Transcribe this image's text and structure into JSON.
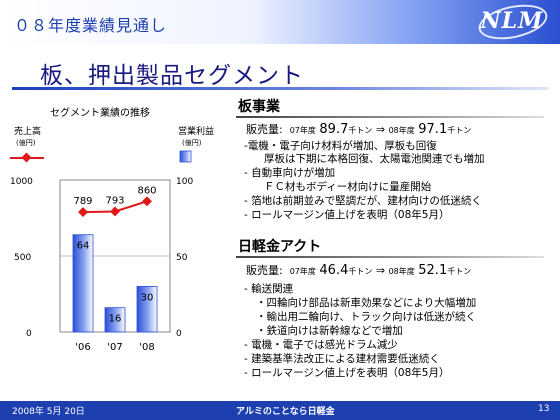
{
  "header": {
    "title": "０８年度業績見通し",
    "logo_text": "NLM"
  },
  "page_title": "板、押出製品セグメント",
  "chart_data": {
    "type": "bar",
    "title": "セグメント業績の推移",
    "categories": [
      "'06",
      "'07",
      "'08"
    ],
    "left_axis": {
      "label": "売上高",
      "unit": "(億円)",
      "ticks": [
        "1000",
        "500",
        "0"
      ],
      "ylim": [
        0,
        1000
      ]
    },
    "right_axis": {
      "label": "営業利益",
      "unit": "(億円)",
      "ticks": [
        "100",
        "50",
        "0"
      ],
      "ylim": [
        0,
        100
      ]
    },
    "series": [
      {
        "axis": "left",
        "kind": "line",
        "values": [
          789,
          793,
          860
        ],
        "color": "#e01818"
      },
      {
        "axis": "right",
        "kind": "bar",
        "values": [
          64,
          16,
          30
        ],
        "color": "#4a6ee0"
      }
    ]
  },
  "section1": {
    "title": "板事業",
    "sales": {
      "label": "販売量:",
      "y1": "07年度",
      "v1": "89.7",
      "u1": "千トン",
      "arrow": "⇒",
      "y2": "08年度",
      "v2": "97.1",
      "u2": "千トン"
    },
    "bullets": [
      "-電機・電子向け材料が増加、厚板も回復",
      "厚板は下期に本格回復、太陽電池関連でも増加",
      "- 自動車向けが増加",
      "ＦＣ材もボディー材向けに量産開始",
      "- 箔地は前期並みで堅調だが、建材向けの低迷続く",
      "- ロールマージン値上げを表明（08年5月）"
    ]
  },
  "section2": {
    "title": "日軽金アクト",
    "sales": {
      "label": "販売量:",
      "y1": "07年度",
      "v1": "46.4",
      "u1": "千トン",
      "arrow": "⇒",
      "y2": "08年度",
      "v2": "52.1",
      "u2": "千トン"
    },
    "bullets": [
      "- 輸送関連",
      "・四輪向け部品は新車効果などにより大幅増加",
      "・輸出用二輪向け、トラック向けは低迷が続く",
      "・鉄道向けは新幹線などで増加",
      "- 電機・電子では感光ドラム減少",
      "- 建築基準法改正による建材需要低迷続く",
      "- ロールマージン値上げを表明（08年5月）"
    ]
  },
  "footer": {
    "date": "2008年 5月 20日",
    "center": "アルミのことなら日軽金",
    "page": "13"
  }
}
